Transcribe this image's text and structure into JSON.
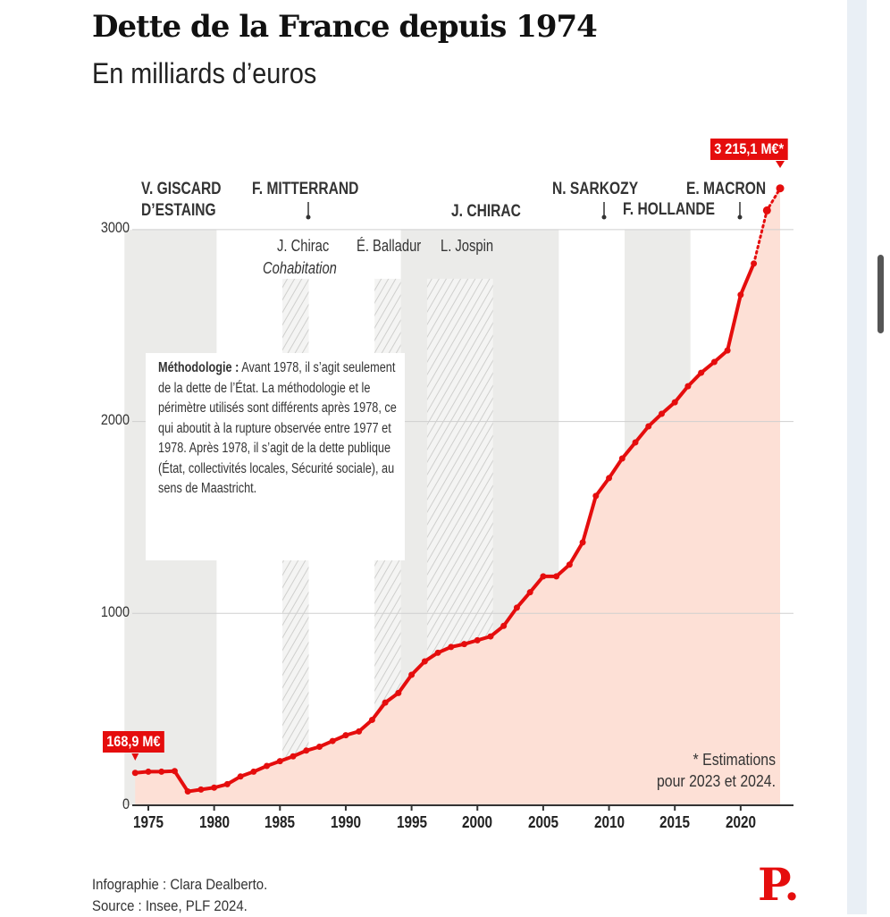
{
  "chart_data": {
    "type": "line",
    "title": "Dette de la France depuis 1974",
    "subtitle": "En milliards d’euros",
    "xlabel": "",
    "ylabel": "",
    "ylim": [
      0,
      3000
    ],
    "xlim": [
      1974,
      2023
    ],
    "y_ticks": [
      "0",
      "1000",
      "2000",
      "3000"
    ],
    "y_tick_values": [
      0,
      1000,
      2000,
      3000
    ],
    "x_ticks": [
      "1975",
      "1980",
      "1985",
      "1990",
      "1995",
      "2000",
      "2005",
      "2010",
      "2015",
      "2020"
    ],
    "grid": true,
    "series": [
      {
        "name": "Dette",
        "color": "#e50d0d",
        "x": [
          1974,
          1975,
          1976,
          1977,
          1978,
          1979,
          1980,
          1981,
          1982,
          1983,
          1984,
          1985,
          1986,
          1987,
          1988,
          1989,
          1990,
          1991,
          1992,
          1993,
          1994,
          1995,
          1996,
          1997,
          1998,
          1999,
          2000,
          2001,
          2002,
          2003,
          2004,
          2005,
          2006,
          2007,
          2008,
          2009,
          2010,
          2011,
          2012,
          2013,
          2014,
          2015,
          2016,
          2017,
          2018,
          2019,
          2020,
          2021,
          2022,
          2023
        ],
        "values": [
          168.9,
          175,
          175,
          178,
          72,
          82,
          92,
          110,
          150,
          175,
          205,
          230,
          255,
          285,
          305,
          335,
          365,
          385,
          445,
          535,
          585,
          680,
          750,
          795,
          825,
          840,
          860,
          880,
          935,
          1030,
          1110,
          1193,
          1193,
          1254,
          1370,
          1612,
          1705,
          1807,
          1891,
          1975,
          2040,
          2100,
          2184,
          2254,
          2310,
          2370,
          2660,
          2823,
          3100,
          3215.1
        ],
        "estimated_from": 2022
      }
    ],
    "area_fill": "#fde0d6",
    "presidencies": [
      {
        "name": "V. GISCARD D’ESTAING",
        "line1": "V. GISCARD",
        "line2": "D’ESTAING",
        "start": 1974,
        "end": 1981,
        "shaded": true
      },
      {
        "name": "F. MITTERRAND",
        "start": 1981,
        "end": 1995,
        "shaded": false
      },
      {
        "name": "J. CHIRAC",
        "start": 1995,
        "end": 2007,
        "shaded": true
      },
      {
        "name": "N. SARKOZY",
        "start": 2007,
        "end": 2012,
        "shaded": false
      },
      {
        "name": "F. HOLLANDE",
        "start": 2012,
        "end": 2017,
        "shaded": true
      },
      {
        "name": "E. MACRON",
        "start": 2017,
        "end": 2023,
        "shaded": false
      }
    ],
    "cohabitations": [
      {
        "pm": "J. Chirac",
        "start": 1986,
        "end": 1988
      },
      {
        "pm": "É. Balladur",
        "start": 1993,
        "end": 1995
      },
      {
        "pm": "L. Jospin",
        "start": 1997,
        "end": 2002
      }
    ],
    "cohabitation_label": "Cohabitation",
    "band_color": "#ebebe9",
    "annotations": {
      "start_label": "168,9 M€",
      "end_label": "3 215,1 M€*",
      "estimate_note_1": "* Estimations",
      "estimate_note_2": "pour 2023 et 2024."
    },
    "methodology": {
      "heading": "Méthodologie :",
      "text": "Avant 1978, il s’agit seulement de la dette de l’État. La méthodologie et le périmètre utilisés sont différents après 1978, ce qui aboutit à la rupture observée entre 1977 et 1978. Après 1978, il s’agit de la dette publique (État, collectivités locales, Sécurité sociale), au sens de Maastricht."
    }
  },
  "footer": {
    "credit": "Infographie : Clara Dealberto.",
    "source": "Source : Insee, PLF 2024.",
    "logo": "P."
  }
}
